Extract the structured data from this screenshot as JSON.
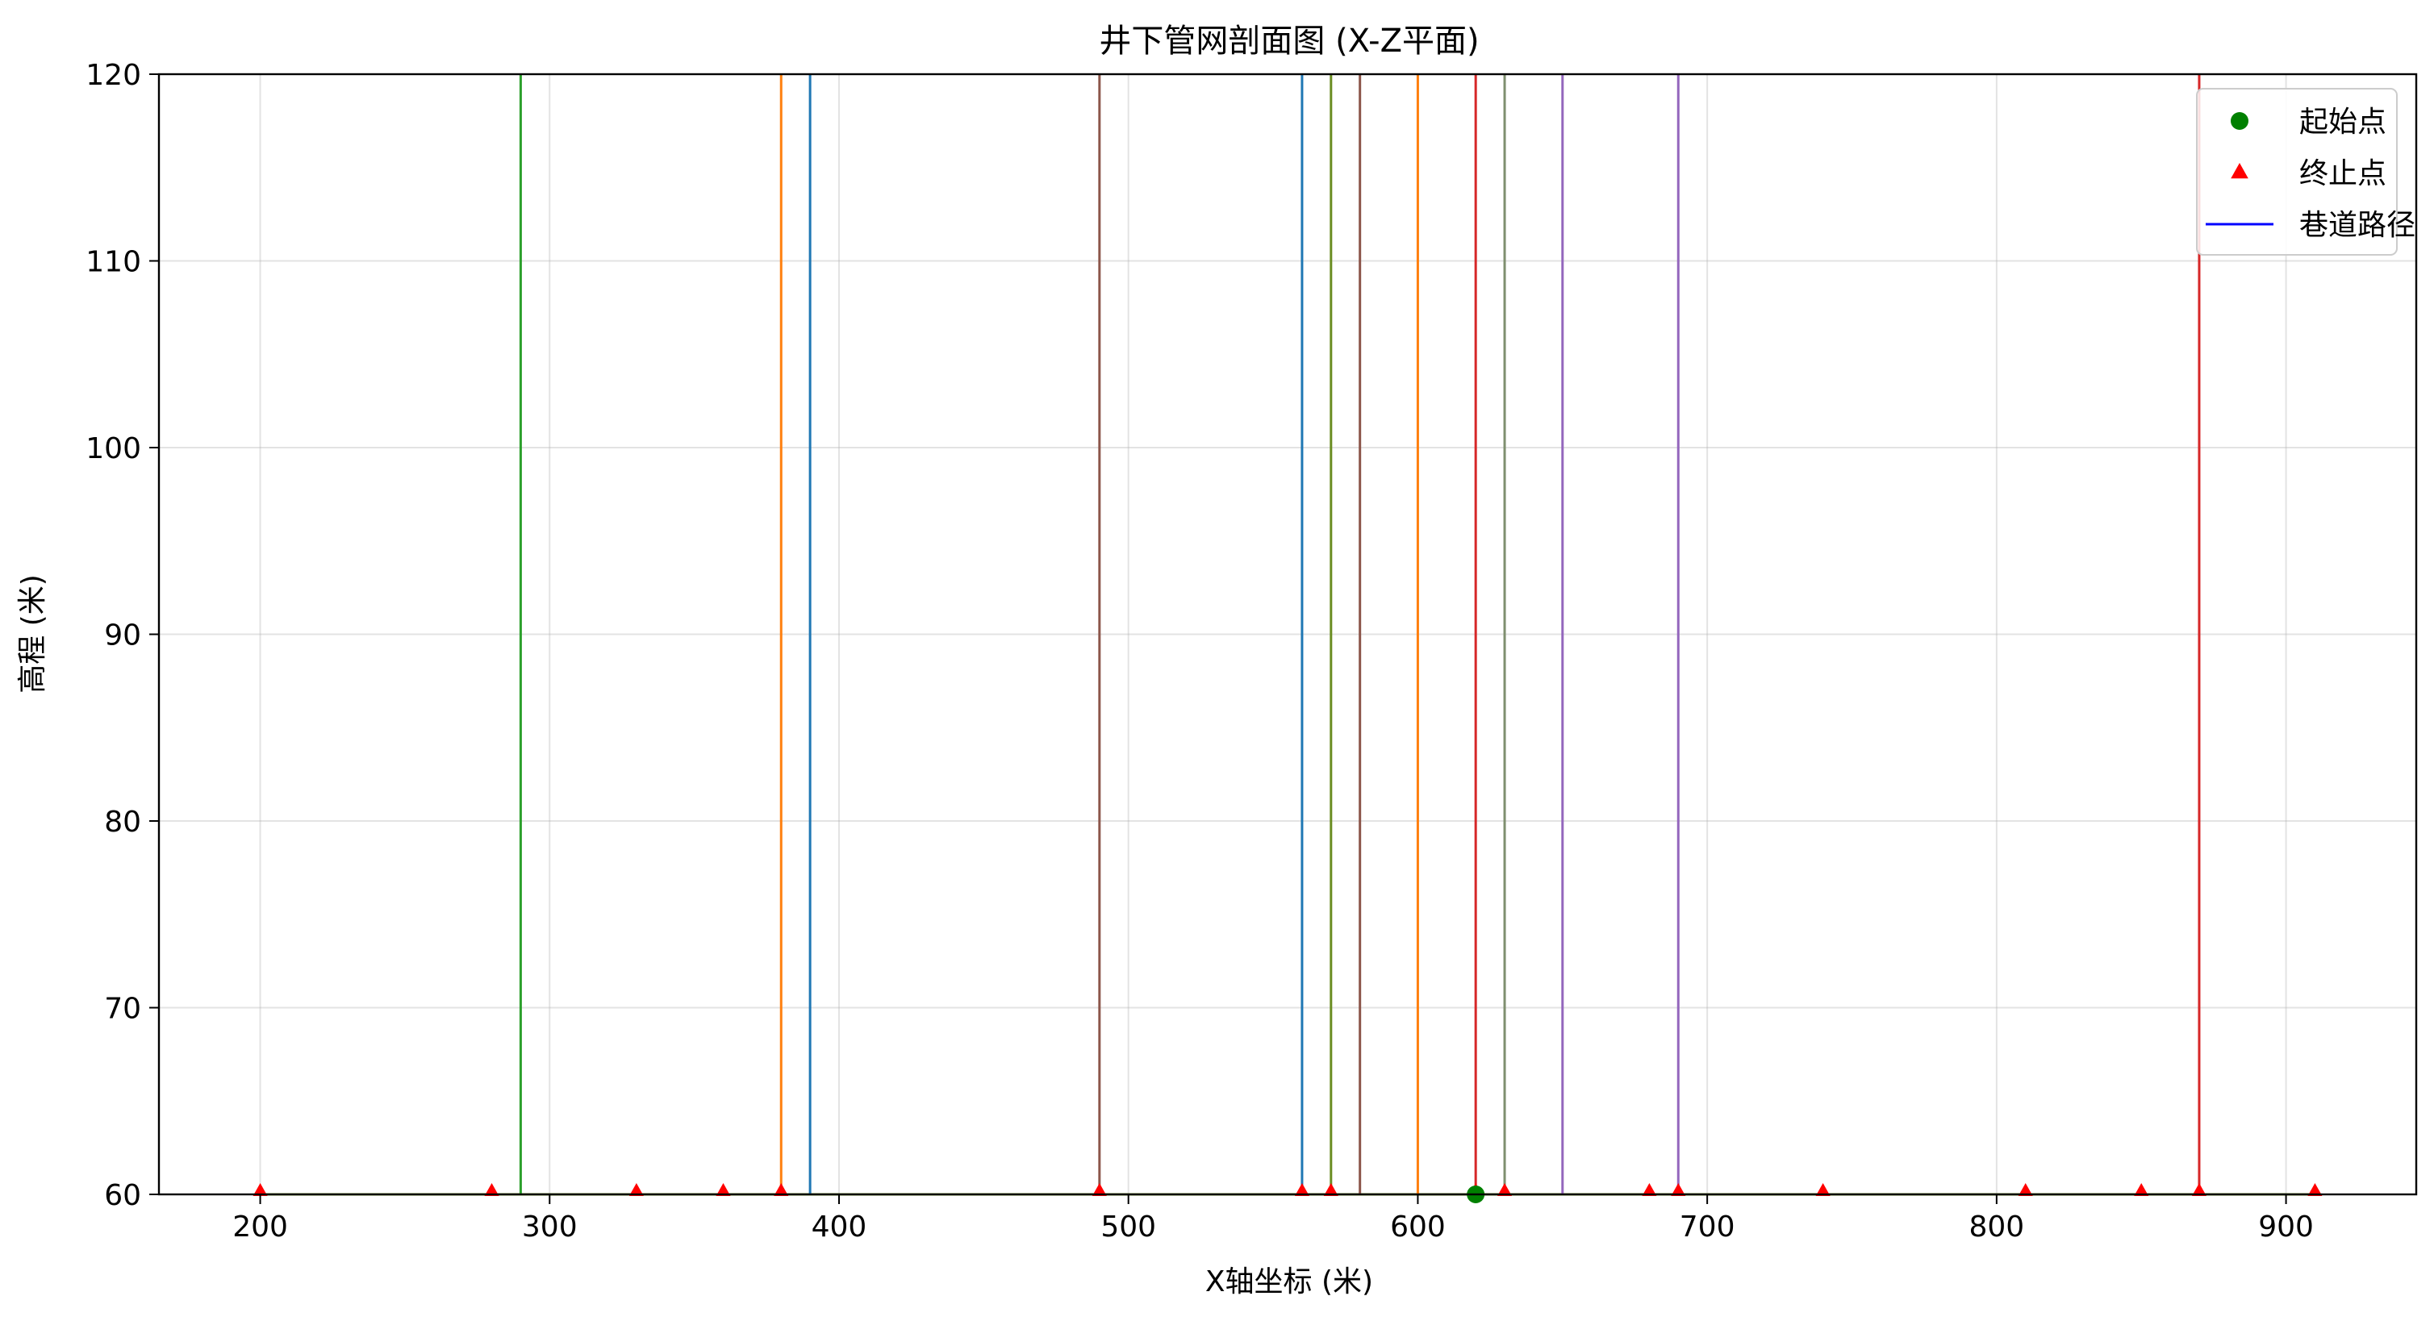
{
  "chart_data": {
    "type": "line",
    "title": "井下管网剖面图 (X-Z平面)",
    "xlabel": "X轴坐标 (米)",
    "ylabel": "高程 (米)",
    "xlim": [
      165,
      945
    ],
    "ylim": [
      60,
      120
    ],
    "xticks": [
      200,
      300,
      400,
      500,
      600,
      700,
      800,
      900
    ],
    "yticks": [
      60,
      70,
      80,
      90,
      100,
      110,
      120
    ],
    "grid": true,
    "legend_position": "top-right",
    "legend": [
      {
        "label": "起始点",
        "marker": "circle",
        "color": "#008000"
      },
      {
        "label": "终止点",
        "marker": "triangle",
        "color": "#ff0000"
      },
      {
        "label": "巷道路径",
        "marker": "line",
        "color": "#0000ff"
      }
    ],
    "baseline": {
      "y": 60,
      "x_from": 200,
      "x_to": 910,
      "color": "#6b8e23"
    },
    "start_points": [
      {
        "x": 620,
        "y": 60
      }
    ],
    "end_points": [
      {
        "x": 200,
        "y": 60
      },
      {
        "x": 280,
        "y": 60
      },
      {
        "x": 330,
        "y": 60
      },
      {
        "x": 360,
        "y": 60
      },
      {
        "x": 380,
        "y": 60
      },
      {
        "x": 490,
        "y": 60
      },
      {
        "x": 560,
        "y": 60
      },
      {
        "x": 570,
        "y": 60
      },
      {
        "x": 620,
        "y": 60
      },
      {
        "x": 630,
        "y": 60
      },
      {
        "x": 680,
        "y": 60
      },
      {
        "x": 690,
        "y": 60
      },
      {
        "x": 740,
        "y": 60
      },
      {
        "x": 810,
        "y": 60
      },
      {
        "x": 850,
        "y": 60
      },
      {
        "x": 870,
        "y": 60
      },
      {
        "x": 910,
        "y": 60
      }
    ],
    "vertical_paths": [
      {
        "x": 290,
        "color": "#2ca02c"
      },
      {
        "x": 380,
        "color": "#ff7f0e"
      },
      {
        "x": 390,
        "color": "#1f77b4"
      },
      {
        "x": 490,
        "color": "#8c564b"
      },
      {
        "x": 560,
        "color": "#1f77b4"
      },
      {
        "x": 570,
        "color": "#6b8e23"
      },
      {
        "x": 580,
        "color": "#8c564b"
      },
      {
        "x": 600,
        "color": "#ff7f0e"
      },
      {
        "x": 620,
        "color": "#d62728"
      },
      {
        "x": 630,
        "color": "#7f8f6f"
      },
      {
        "x": 650,
        "color": "#9467bd"
      },
      {
        "x": 690,
        "color": "#9467bd"
      },
      {
        "x": 870,
        "color": "#d62728"
      }
    ]
  }
}
